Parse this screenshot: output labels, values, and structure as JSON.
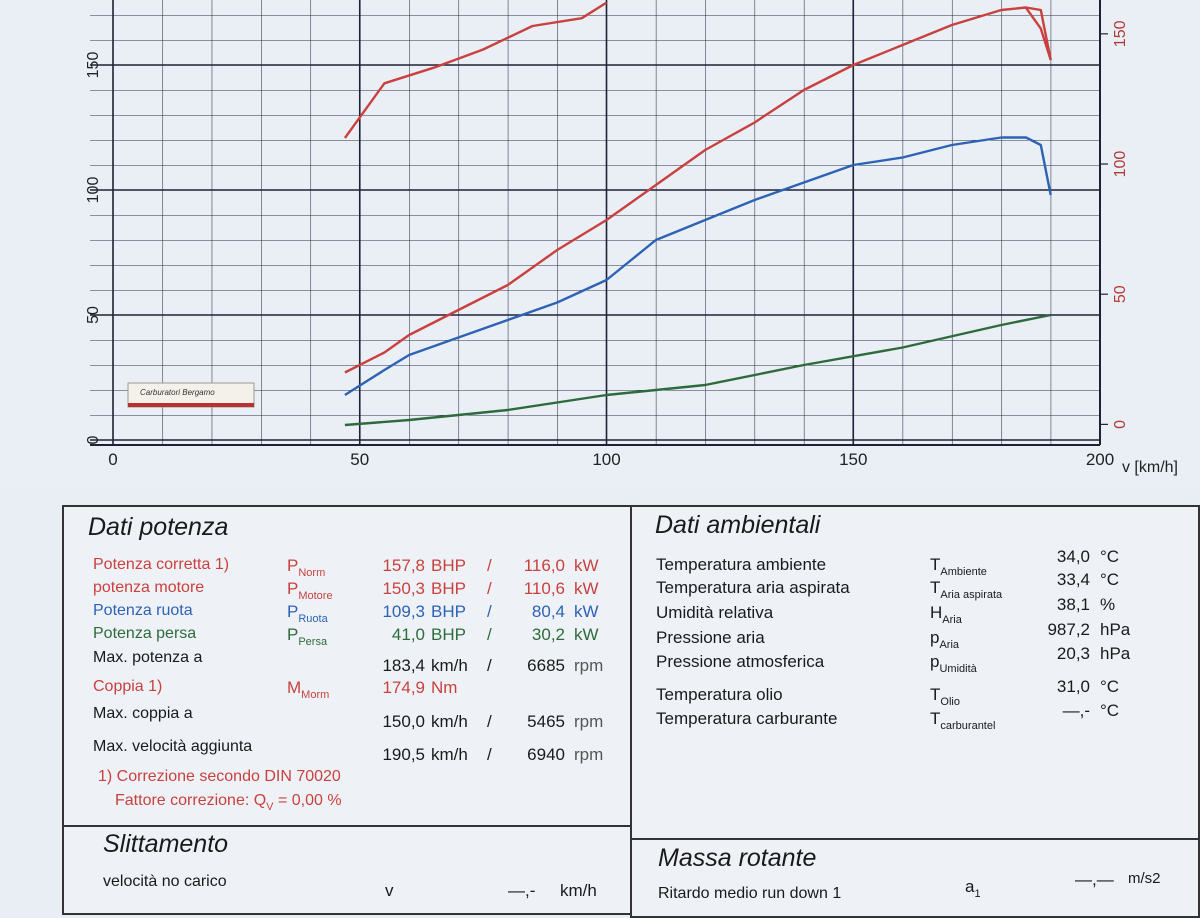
{
  "chart_data": {
    "type": "line",
    "xlabel": "v [km/h]",
    "xlim": [
      0,
      200
    ],
    "xticks": [
      0,
      50,
      100,
      150,
      200
    ],
    "ylim": [
      0,
      176
    ],
    "yticks": [
      0,
      50,
      100,
      150
    ],
    "y2lim": [
      -6,
      163
    ],
    "y2ticks": [
      0,
      50,
      100,
      150
    ],
    "grid": true,
    "series": [
      {
        "color": "#c9413f",
        "x": [
          47,
          55,
          60,
          70,
          80,
          90,
          100,
          110,
          120,
          130,
          140,
          150,
          160,
          170,
          180,
          185,
          188,
          190
        ],
        "values": [
          27,
          35,
          42,
          52,
          62,
          76,
          88,
          102,
          116,
          127,
          140,
          150,
          158,
          166,
          172,
          173,
          172,
          152
        ]
      },
      {
        "color": "#2d62b5",
        "x": [
          47,
          55,
          60,
          70,
          80,
          90,
          100,
          110,
          120,
          130,
          140,
          150,
          160,
          170,
          180,
          185,
          188,
          190
        ],
        "values": [
          18,
          28,
          34,
          41,
          48,
          55,
          64,
          80,
          88,
          96,
          103,
          110,
          113,
          118,
          121,
          121,
          118,
          98
        ]
      },
      {
        "color": "#2e6b3c",
        "x": [
          47,
          60,
          80,
          100,
          120,
          140,
          160,
          180,
          190
        ],
        "values": [
          6,
          8,
          12,
          18,
          22,
          30,
          37,
          46,
          50
        ]
      },
      {
        "color": "#c9413f",
        "axis": "y2",
        "x": [
          47,
          55,
          65,
          75,
          85,
          95,
          100,
          110,
          185,
          188,
          190
        ],
        "values": [
          110,
          131,
          137,
          144,
          153,
          156,
          162,
          null,
          160,
          152,
          140
        ]
      }
    ]
  },
  "logo": "Carburatori Bergamo",
  "potenza": {
    "title": "Dati potenza",
    "rows": [
      {
        "label": "Potenza corretta 1)",
        "symbol": "P",
        "sub": "Norm",
        "v1": "157,8",
        "u1": "BHP",
        "sep": "/",
        "v2": "116,0",
        "u2": "kW",
        "color": "#c9413f"
      },
      {
        "label": "potenza motore",
        "symbol": "P",
        "sub": "Motore",
        "v1": "150,3",
        "u1": "BHP",
        "sep": "/",
        "v2": "110,6",
        "u2": "kW",
        "color": "#c9413f"
      },
      {
        "label": "Potenza ruota",
        "symbol": "P",
        "sub": "Ruota",
        "v1": "109,3",
        "u1": "BHP",
        "sep": "/",
        "v2": "80,4",
        "u2": "kW",
        "color": "#2d62b5"
      },
      {
        "label": "Potenza persa",
        "symbol": "P",
        "sub": "Persa",
        "v1": "41,0",
        "u1": "BHP",
        "sep": "/",
        "v2": "30,2",
        "u2": "kW",
        "color": "#2e6b3c"
      },
      {
        "label": "Max. potenza a",
        "v1": "183,4",
        "u1": "km/h",
        "sep": "/",
        "v2": "6685",
        "u2": "rpm",
        "color": "#1a1a1a"
      },
      {
        "label": "Coppia 1)",
        "symbol": "M",
        "sub": "Morm",
        "v1": "174,9",
        "u1": "Nm",
        "color": "#c9413f"
      },
      {
        "label": "Max. coppia a",
        "v1": "150,0",
        "u1": "km/h",
        "sep": "/",
        "v2": "5465",
        "u2": "rpm",
        "color": "#1a1a1a"
      },
      {
        "label": "Max. velocità aggiunta",
        "v1": "190,5",
        "u1": "km/h",
        "sep": "/",
        "v2": "6940",
        "u2": "rpm",
        "color": "#1a1a1a"
      }
    ],
    "note1": "1) Correzione secondo DIN 70020",
    "note2": "Fattore correzione: Q",
    "note2_sub": "V",
    "note2_value": "= 0,00 %"
  },
  "ambientali": {
    "title": "Dati ambientali",
    "rows": [
      {
        "label": "Temperatura ambiente",
        "symbol": "T",
        "sub": "Ambiente",
        "value": "34,0",
        "unit": "°C"
      },
      {
        "label": "Temperatura aria aspirata",
        "symbol": "T",
        "sub": "Aria aspirata",
        "value": "33,4",
        "unit": "°C"
      },
      {
        "label": "Umidità relativa",
        "symbol": "H",
        "sub": "Aria",
        "value": "38,1",
        "unit": "%"
      },
      {
        "label": "Pressione aria",
        "symbol": "p",
        "sub": "Aria",
        "value": "987,2",
        "unit": "hPa"
      },
      {
        "label": "Pressione atmosferica",
        "symbol": "p",
        "sub": "Umidità",
        "value": "20,3",
        "unit": "hPa"
      },
      {
        "label": "Temperatura olio",
        "symbol": "T",
        "sub": "Olio",
        "value": "31,0",
        "unit": "°C"
      },
      {
        "label": "Temperatura carburante",
        "symbol": "T",
        "sub": "carburantel",
        "value": "—,-",
        "unit": "°C"
      }
    ]
  },
  "slittamento": {
    "title": "Slittamento",
    "rows": [
      {
        "label": "velocità no carico",
        "symbol": "v",
        "value": "—,-",
        "unit": "km/h"
      }
    ]
  },
  "massa": {
    "title": "Massa rotante",
    "rows": [
      {
        "label": "Ritardo medio run down 1",
        "symbol": "a",
        "sub": "1",
        "value": "—,—",
        "unit": "m/s2"
      }
    ]
  }
}
